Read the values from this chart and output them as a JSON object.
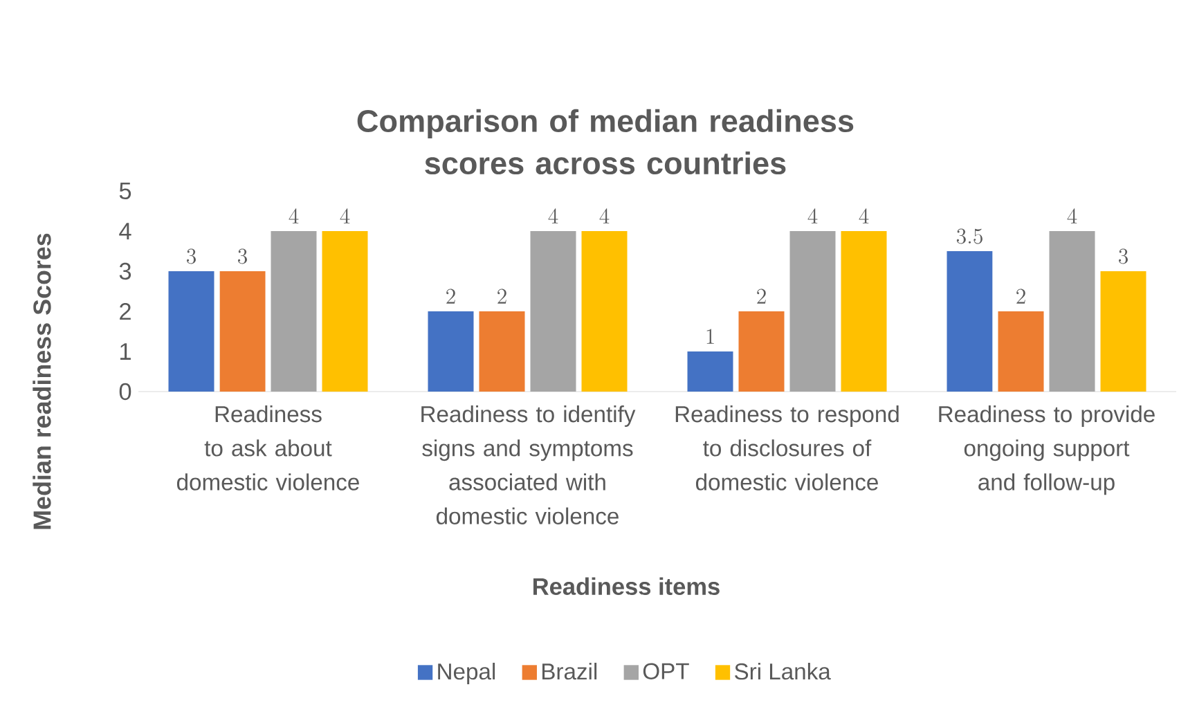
{
  "chart_data": {
    "type": "bar",
    "title": "Comparison of median readiness scores across countries",
    "xlabel": "Readiness items",
    "ylabel": "Median readiness Scores",
    "categories": [
      "Readiness to ask about domestic violence",
      "Readiness to identify signs and symptoms associated with domestic violence",
      "Readiness to respond to disclosures of domestic violence",
      "Readiness to provide ongoing support and follow-up"
    ],
    "series": [
      {
        "name": "Nepal",
        "color": "#4472c4",
        "values": [
          3,
          2,
          1,
          3.5
        ]
      },
      {
        "name": "Brazil",
        "color": "#ed7d31",
        "values": [
          3,
          2,
          2,
          2
        ]
      },
      {
        "name": "OPT",
        "color": "#a5a5a5",
        "values": [
          4,
          4,
          4,
          4
        ]
      },
      {
        "name": "Sri Lanka",
        "color": "#ffc000",
        "values": [
          4,
          4,
          4,
          3
        ]
      }
    ],
    "ylim": [
      0,
      5
    ],
    "yticks": [
      0,
      1,
      2,
      3,
      4,
      5
    ],
    "data_labels": true,
    "legend": "bottom",
    "grid": false
  }
}
